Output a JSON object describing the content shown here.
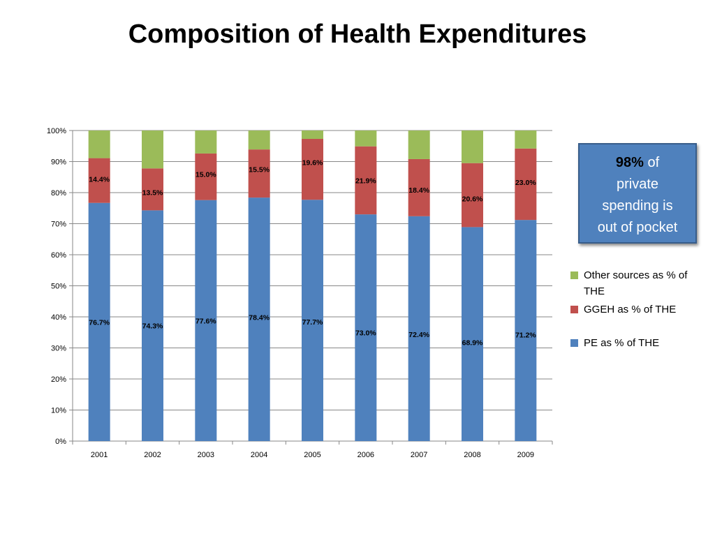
{
  "slide": {
    "title": "Composition of Health Expenditures"
  },
  "callout": {
    "highlight": "98%",
    "line1_rest": " of",
    "line2": "private",
    "line3": "spending is",
    "line4": "out of pocket",
    "background_color": "#4f81bd"
  },
  "legend": {
    "placement": "right",
    "items": [
      {
        "label": "Other sources as % of THE",
        "color": "#9bbb59"
      },
      {
        "label": "GGEH as % of THE",
        "color": "#c0504d"
      },
      {
        "label": "PE as % of THE",
        "color": "#4f81bd"
      }
    ]
  },
  "chart_data": {
    "type": "bar",
    "stacked": true,
    "percent_stacked": true,
    "categories": [
      "2001",
      "2002",
      "2003",
      "2004",
      "2005",
      "2006",
      "2007",
      "2008",
      "2009"
    ],
    "series": [
      {
        "name": "PE as % of THE",
        "color": "#4f81bd",
        "values": [
          76.7,
          74.3,
          77.6,
          78.4,
          77.7,
          73.0,
          72.4,
          68.9,
          71.2
        ],
        "labels": [
          "76.7%",
          "74.3%",
          "77.6%",
          "78.4%",
          "77.7%",
          "73.0%",
          "72.4%",
          "68.9%",
          "71.2%"
        ]
      },
      {
        "name": "GGEH as % of THE",
        "color": "#c0504d",
        "values": [
          14.4,
          13.5,
          15.0,
          15.5,
          19.6,
          21.9,
          18.4,
          20.6,
          23.0
        ],
        "labels": [
          "14.4%",
          "13.5%",
          "15.0%",
          "15.5%",
          "19.6%",
          "21.9%",
          "18.4%",
          "20.6%",
          "23.0%"
        ]
      },
      {
        "name": "Other sources as % of THE",
        "color": "#9bbb59",
        "values": [
          8.9,
          12.2,
          7.4,
          6.1,
          2.7,
          5.1,
          9.2,
          10.5,
          5.8
        ],
        "labels": []
      }
    ],
    "ylim": [
      0,
      100
    ],
    "y_ticks": [
      "0%",
      "10%",
      "20%",
      "30%",
      "40%",
      "50%",
      "60%",
      "70%",
      "80%",
      "90%",
      "100%"
    ],
    "grid": true,
    "legend_placement": "right"
  }
}
